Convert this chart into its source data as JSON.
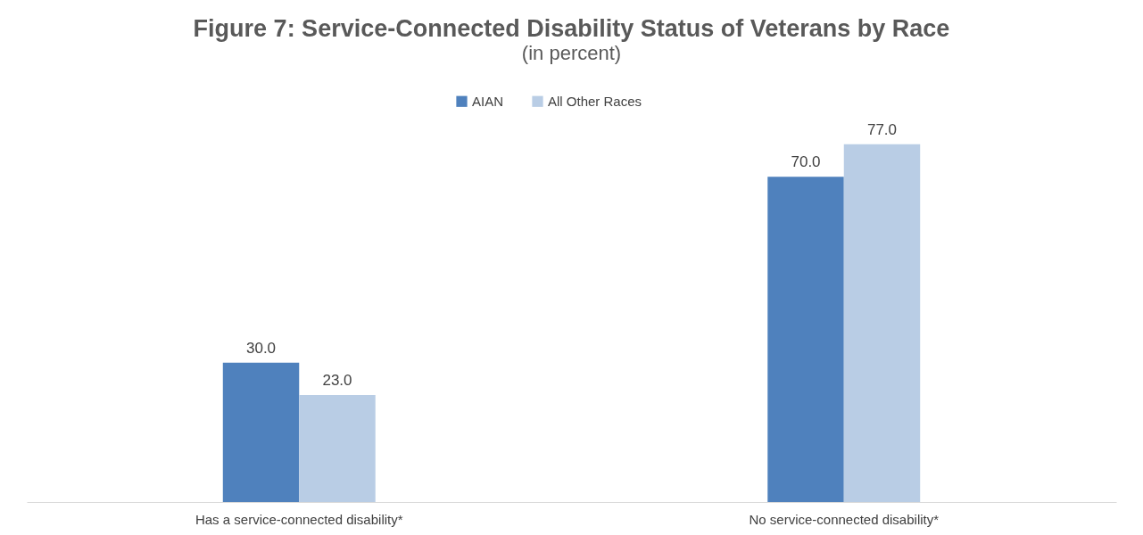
{
  "chart_data": {
    "type": "bar",
    "title": "Figure 7: Service-Connected Disability Status of Veterans by Race",
    "subtitle": "(in percent)",
    "categories": [
      "Has a service-connected disability*",
      "No service-connected disability*"
    ],
    "series": [
      {
        "name": "AIAN",
        "color": "#4f81bd",
        "values": [
          30.0,
          70.0
        ],
        "value_labels": [
          "30.0",
          "70.0"
        ]
      },
      {
        "name": "All Other Races",
        "color": "#b9cde5",
        "values": [
          23.0,
          77.0
        ],
        "value_labels": [
          "23.0",
          "77.0"
        ]
      }
    ],
    "legend": "top",
    "grid": false
  }
}
